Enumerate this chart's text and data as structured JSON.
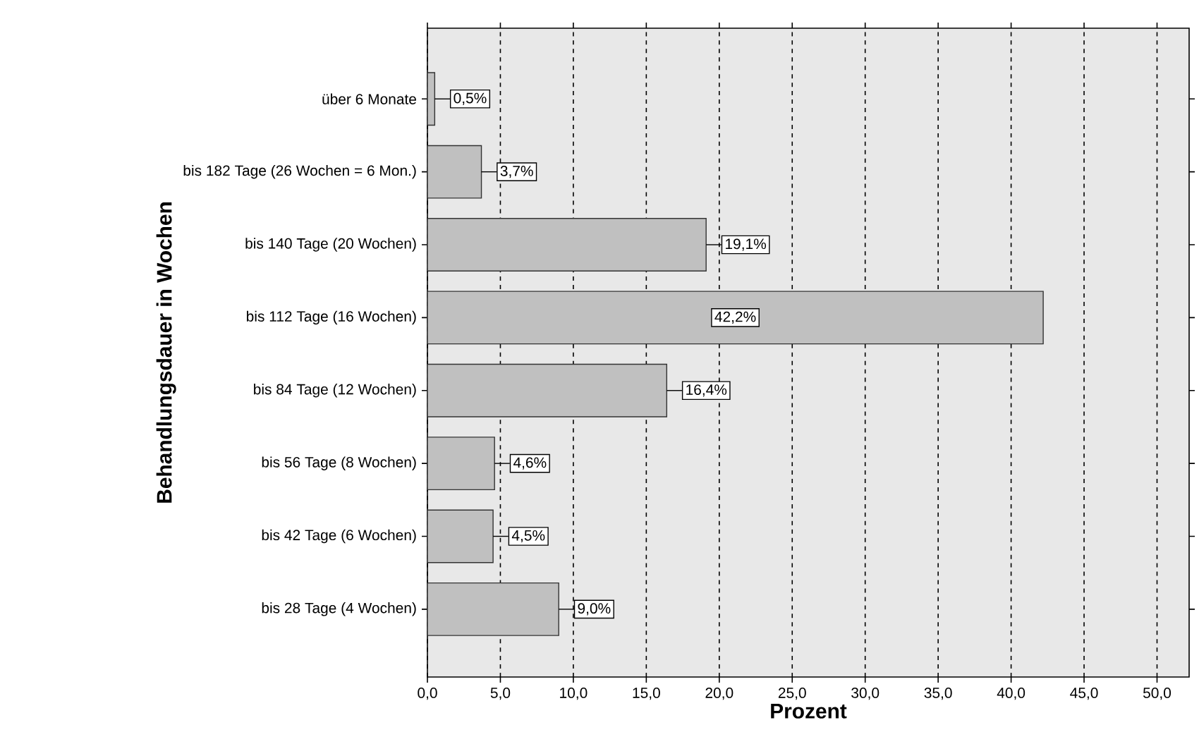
{
  "chart_data": {
    "type": "bar",
    "orientation": "horizontal",
    "xlabel": "Prozent",
    "ylabel": "Behandlungsdauer in Wochen",
    "categories": [
      "über 6 Monate",
      "bis 182 Tage (26 Wochen = 6 Mon.)",
      "bis 140 Tage (20 Wochen)",
      "bis 112 Tage (16 Wochen)",
      "bis 84 Tage (12 Wochen)",
      "bis 56 Tage (8 Wochen)",
      "bis 42 Tage (6 Wochen)",
      "bis 28 Tage (4 Wochen)"
    ],
    "values": [
      0.5,
      3.7,
      19.1,
      42.2,
      16.4,
      4.6,
      4.5,
      9.0
    ],
    "value_labels": [
      "0,5%",
      "3,7%",
      "19,1%",
      "42,2%",
      "16,4%",
      "4,6%",
      "4,5%",
      "9,0%"
    ],
    "color": "#c0c0c0",
    "xlim": [
      0,
      52.2
    ],
    "xticks": [
      {
        "value": 0,
        "label": "0,0"
      },
      {
        "value": 5,
        "label": "5,0"
      },
      {
        "value": 10,
        "label": "10,0"
      },
      {
        "value": 15,
        "label": "15,0"
      },
      {
        "value": 20,
        "label": "20,0"
      },
      {
        "value": 25,
        "label": "25,0"
      },
      {
        "value": 30,
        "label": "30,0"
      },
      {
        "value": 35,
        "label": "35,0"
      },
      {
        "value": 40,
        "label": "40,0"
      },
      {
        "value": 45,
        "label": "45,0"
      },
      {
        "value": 50,
        "label": "50,0"
      }
    ],
    "grid": "x"
  }
}
